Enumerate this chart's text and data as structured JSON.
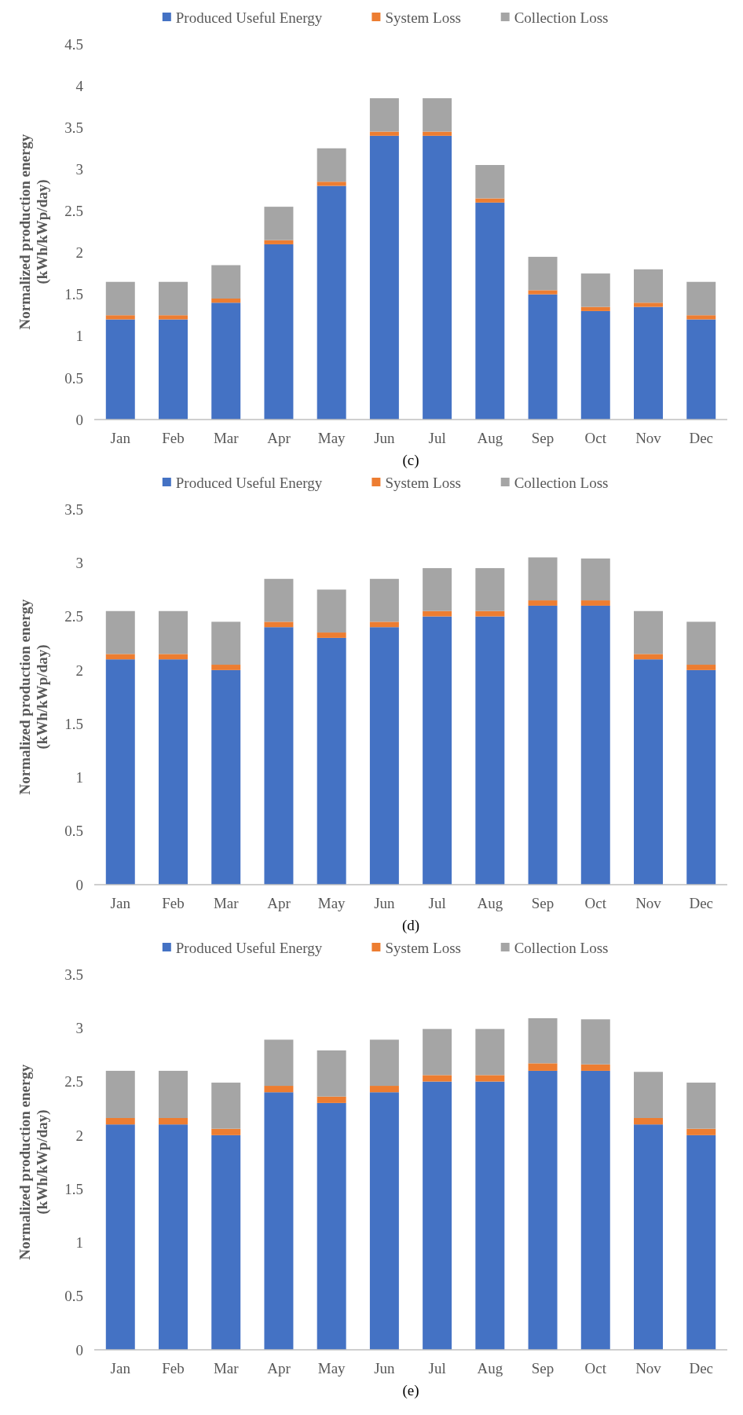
{
  "chart_data": [
    {
      "type": "bar",
      "stacked": true,
      "legend": "top",
      "grid": false,
      "ylabel": "Normalized production energy\n(kWh/kWp/day)",
      "annotations": [
        "(c)"
      ],
      "categories": [
        "Jan",
        "Feb",
        "Mar",
        "Apr",
        "May",
        "Jun",
        "Jul",
        "Aug",
        "Sep",
        "Oct",
        "Nov",
        "Dec"
      ],
      "ylim": [
        0,
        4.5
      ],
      "yticks": [
        0,
        0.5,
        1,
        1.5,
        2,
        2.5,
        3,
        3.5,
        4,
        4.5
      ],
      "series": [
        {
          "name": "Produced Useful Energy",
          "color": "#4472c4",
          "values": [
            1.2,
            1.2,
            1.4,
            2.1,
            2.8,
            3.4,
            3.4,
            2.6,
            1.5,
            1.3,
            1.35,
            1.2
          ]
        },
        {
          "name": "System Loss",
          "color": "#ed7d31",
          "values": [
            0.05,
            0.05,
            0.05,
            0.05,
            0.05,
            0.05,
            0.05,
            0.05,
            0.05,
            0.05,
            0.05,
            0.05
          ]
        },
        {
          "name": "Collection Loss",
          "color": "#a5a5a5",
          "values": [
            0.4,
            0.4,
            0.4,
            0.4,
            0.4,
            0.4,
            0.4,
            0.4,
            0.4,
            0.4,
            0.4,
            0.4
          ]
        }
      ]
    },
    {
      "type": "bar",
      "stacked": true,
      "legend": "top",
      "grid": false,
      "ylabel": "Normalized production energy\n(kWh/kWp/day)",
      "annotations": [
        "(d)"
      ],
      "categories": [
        "Jan",
        "Feb",
        "Mar",
        "Apr",
        "May",
        "Jun",
        "Jul",
        "Aug",
        "Sep",
        "Oct",
        "Nov",
        "Dec"
      ],
      "ylim": [
        0,
        3.5
      ],
      "yticks": [
        0,
        0.5,
        1,
        1.5,
        2,
        2.5,
        3,
        3.5
      ],
      "series": [
        {
          "name": "Produced Useful Energy",
          "color": "#4472c4",
          "values": [
            2.1,
            2.1,
            2.0,
            2.4,
            2.3,
            2.4,
            2.5,
            2.5,
            2.6,
            2.6,
            2.1,
            2.0
          ]
        },
        {
          "name": "System Loss",
          "color": "#ed7d31",
          "values": [
            0.05,
            0.05,
            0.05,
            0.05,
            0.05,
            0.05,
            0.05,
            0.05,
            0.05,
            0.05,
            0.05,
            0.05
          ]
        },
        {
          "name": "Collection Loss",
          "color": "#a5a5a5",
          "values": [
            0.4,
            0.4,
            0.4,
            0.4,
            0.4,
            0.4,
            0.4,
            0.4,
            0.4,
            0.39,
            0.4,
            0.4
          ]
        }
      ]
    },
    {
      "type": "bar",
      "stacked": true,
      "legend": "top",
      "grid": false,
      "ylabel": "Normalized production energy\n(kWh/kWp/day)",
      "annotations": [
        "(e)"
      ],
      "categories": [
        "Jan",
        "Feb",
        "Mar",
        "Apr",
        "May",
        "Jun",
        "Jul",
        "Aug",
        "Sep",
        "Oct",
        "Nov",
        "Dec"
      ],
      "ylim": [
        0,
        3.5
      ],
      "yticks": [
        0,
        0.5,
        1,
        1.5,
        2,
        2.5,
        3,
        3.5
      ],
      "series": [
        {
          "name": "Produced Useful Energy",
          "color": "#4472c4",
          "values": [
            2.1,
            2.1,
            2.0,
            2.4,
            2.3,
            2.4,
            2.5,
            2.5,
            2.6,
            2.6,
            2.1,
            2.0
          ]
        },
        {
          "name": "System Loss",
          "color": "#ed7d31",
          "values": [
            0.06,
            0.06,
            0.06,
            0.06,
            0.06,
            0.06,
            0.06,
            0.06,
            0.07,
            0.06,
            0.06,
            0.06
          ]
        },
        {
          "name": "Collection Loss",
          "color": "#a5a5a5",
          "values": [
            0.44,
            0.44,
            0.43,
            0.43,
            0.43,
            0.43,
            0.43,
            0.43,
            0.42,
            0.42,
            0.43,
            0.43
          ]
        }
      ]
    }
  ]
}
